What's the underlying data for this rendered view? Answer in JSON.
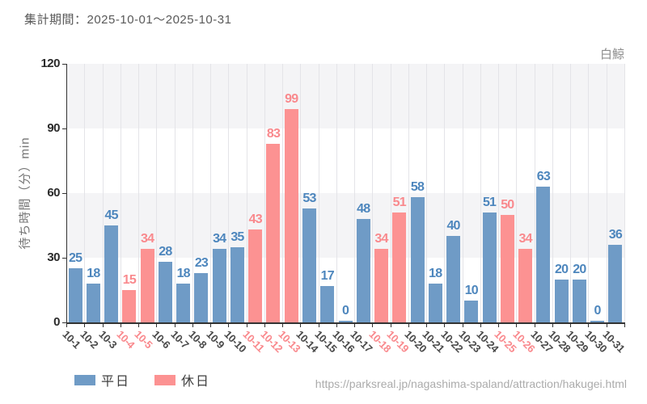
{
  "header": {
    "title": "集計期間：2025-10-01～2025-10-31",
    "attraction": "白鯨"
  },
  "chart_data": {
    "type": "bar",
    "title": "集計期間：2025-10-01～2025-10-31",
    "xlabel": "",
    "ylabel": "待ち時間（分）min",
    "ylim": [
      0,
      120
    ],
    "yticks": [
      0,
      30,
      60,
      90,
      120
    ],
    "grid": "vertical lines + alternating horizontal bands (30-60, 90-120 shaded)",
    "legend_position": "bottom-left",
    "legend": [
      {
        "name": "平日",
        "key": "weekday"
      },
      {
        "name": "休日",
        "key": "holiday"
      }
    ],
    "points": [
      {
        "date": "10-1",
        "value": 25,
        "day": "weekday"
      },
      {
        "date": "10-2",
        "value": 18,
        "day": "weekday"
      },
      {
        "date": "10-3",
        "value": 45,
        "day": "weekday"
      },
      {
        "date": "10-4",
        "value": 15,
        "day": "holiday"
      },
      {
        "date": "10-5",
        "value": 34,
        "day": "holiday"
      },
      {
        "date": "10-6",
        "value": 28,
        "day": "weekday"
      },
      {
        "date": "10-7",
        "value": 18,
        "day": "weekday"
      },
      {
        "date": "10-8",
        "value": 23,
        "day": "weekday"
      },
      {
        "date": "10-9",
        "value": 34,
        "day": "weekday"
      },
      {
        "date": "10-10",
        "value": 35,
        "day": "weekday"
      },
      {
        "date": "10-11",
        "value": 43,
        "day": "holiday"
      },
      {
        "date": "10-12",
        "value": 83,
        "day": "holiday"
      },
      {
        "date": "10-13",
        "value": 99,
        "day": "holiday"
      },
      {
        "date": "10-14",
        "value": 53,
        "day": "weekday"
      },
      {
        "date": "10-15",
        "value": 17,
        "day": "weekday"
      },
      {
        "date": "10-16",
        "value": 0,
        "day": "weekday"
      },
      {
        "date": "10-17",
        "value": 48,
        "day": "weekday"
      },
      {
        "date": "10-18",
        "value": 34,
        "day": "holiday"
      },
      {
        "date": "10-19",
        "value": 51,
        "day": "holiday"
      },
      {
        "date": "10-20",
        "value": 58,
        "day": "weekday"
      },
      {
        "date": "10-21",
        "value": 18,
        "day": "weekday"
      },
      {
        "date": "10-22",
        "value": 40,
        "day": "weekday"
      },
      {
        "date": "10-23",
        "value": 10,
        "day": "weekday"
      },
      {
        "date": "10-24",
        "value": 51,
        "day": "weekday"
      },
      {
        "date": "10-25",
        "value": 50,
        "day": "holiday"
      },
      {
        "date": "10-26",
        "value": 34,
        "day": "holiday"
      },
      {
        "date": "10-27",
        "value": 63,
        "day": "weekday"
      },
      {
        "date": "10-28",
        "value": 20,
        "day": "weekday"
      },
      {
        "date": "10-29",
        "value": 20,
        "day": "weekday"
      },
      {
        "date": "10-30",
        "value": 0,
        "day": "weekday"
      },
      {
        "date": "10-31",
        "value": 36,
        "day": "weekday"
      }
    ]
  },
  "colors": {
    "weekday_bar": "#6f9bc6",
    "weekday_value_label": "#4d86bd",
    "holiday_bar": "#fc9292",
    "holiday_value_label": "#f9898d",
    "weekday_axis_label": "#4a4a4a",
    "holiday_axis_label": "#f9898d",
    "axis_line": "#333333",
    "band_fill": "#f4f4f6",
    "gridline": "#e4e4e8"
  },
  "footer": {
    "url": "https://parksreal.jp/nagashima-spaland/attraction/hakugei.html"
  }
}
